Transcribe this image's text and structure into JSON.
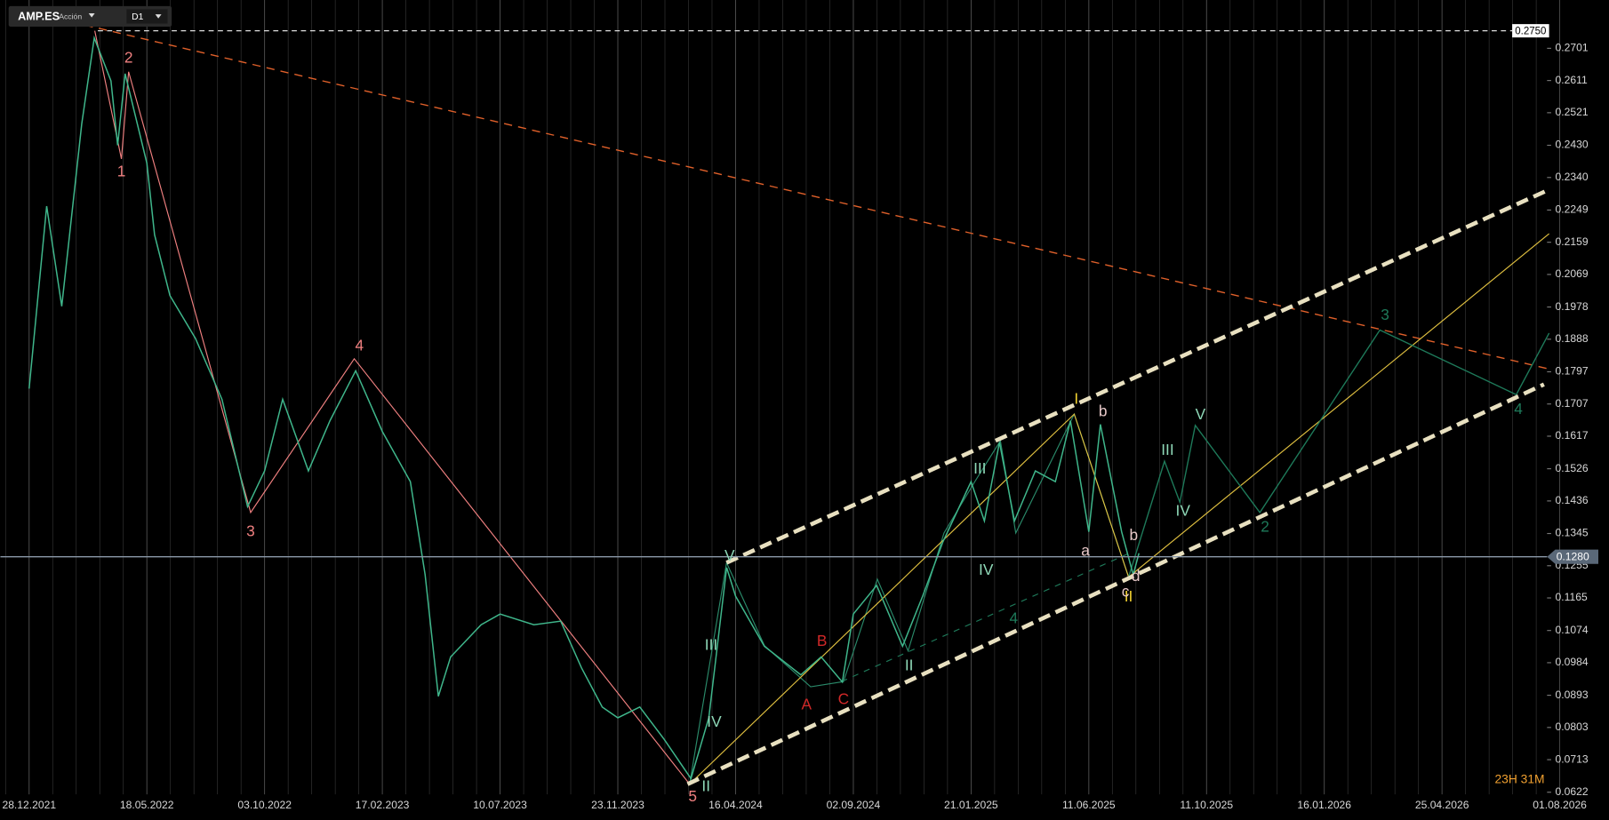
{
  "toolbar": {
    "symbol": "AMP.ES",
    "instrument_type": "Acción",
    "timeframe": "D1"
  },
  "chart_data": {
    "type": "line",
    "color": "#3fb68b",
    "x": [
      "28.12.2021",
      "18.01.2022",
      "05.02.2022",
      "01.03.2022",
      "16.03.2022",
      "05.04.2022",
      "13.04.2022",
      "22.04.2022",
      "18.05.2022",
      "27.05.2022",
      "14.06.2022",
      "14.07.2022",
      "14.08.2022",
      "13.09.2022",
      "03.10.2022",
      "24.10.2022",
      "23.11.2022",
      "18.12.2022",
      "17.01.2023",
      "17.02.2023",
      "23.03.2023",
      "10.04.2023",
      "26.04.2023",
      "11.05.2023",
      "17.06.2023",
      "10.07.2023",
      "18.08.2023",
      "18.09.2023",
      "12.10.2023",
      "05.11.2023",
      "23.11.2023",
      "20.12.2023",
      "19.01.2024",
      "21.02.2024",
      "14.03.2024",
      "05.04.2024",
      "16.04.2024",
      "20.05.2024",
      "02.07.2024",
      "26.07.2024",
      "20.08.2024",
      "02.09.2024",
      "30.09.2024",
      "31.10.2024",
      "24.11.2024",
      "18.12.2024",
      "21.01.2025",
      "06.02.2025",
      "24.02.2025",
      "14.03.2025",
      "08.04.2025",
      "02.05.2025",
      "20.05.2025",
      "11.06.2025",
      "23.06.2025",
      "15.07.2025",
      "27.07.2025",
      "02.08.2025"
    ],
    "values": [
      0.175,
      0.226,
      0.198,
      0.249,
      0.273,
      0.261,
      0.243,
      0.263,
      0.238,
      0.218,
      0.201,
      0.189,
      0.172,
      0.142,
      0.152,
      0.172,
      0.152,
      0.166,
      0.18,
      0.163,
      0.149,
      0.123,
      0.089,
      0.1,
      0.109,
      0.112,
      0.109,
      0.11,
      0.097,
      0.086,
      0.083,
      0.086,
      0.077,
      0.066,
      0.083,
      0.125,
      0.117,
      0.103,
      0.095,
      0.1,
      0.093,
      0.112,
      0.12,
      0.103,
      0.117,
      0.132,
      0.149,
      0.138,
      0.16,
      0.138,
      0.152,
      0.149,
      0.166,
      0.135,
      0.165,
      0.135,
      0.123,
      0.129
    ],
    "ylim": [
      0.0616,
      0.2836
    ],
    "yticks": [
      0.2701,
      0.2611,
      0.2521,
      {
        "value": 0.243,
        "label": "0.2430"
      },
      {
        "value": 0.234,
        "label": "0.2340"
      },
      0.2249,
      0.2159,
      0.2069,
      0.1978,
      0.1888,
      0.1797,
      0.1707,
      0.1617,
      0.1526,
      0.1436,
      0.1345,
      0.1255,
      0.1165,
      0.1074,
      0.0984,
      0.0893,
      0.0803,
      0.0713,
      0.0622
    ],
    "xticks": [
      "28.12.2021",
      "18.05.2022",
      "03.10.2022",
      "17.02.2023",
      "10.07.2023",
      "23.11.2023",
      "16.04.2024",
      "02.09.2024",
      "21.01.2025",
      "11.06.2025",
      "11.10.2025",
      "16.01.2026",
      "25.04.2026",
      "01.08.2026"
    ],
    "price_lines": [
      {
        "value": 0.275,
        "label": "0.2750"
      },
      {
        "value": 0.128,
        "label": "0.1280"
      }
    ],
    "countdown": "23H 31M"
  },
  "wave_labels": [
    "1",
    "2",
    "3",
    "4",
    "5",
    "I",
    "II",
    "3",
    "4",
    "2",
    "4",
    "V",
    "III",
    "IV",
    "II",
    "III",
    "IV",
    "V",
    "III",
    "IV",
    "II",
    "A",
    "B",
    "C",
    "a",
    "b",
    "b",
    "c",
    "d"
  ]
}
